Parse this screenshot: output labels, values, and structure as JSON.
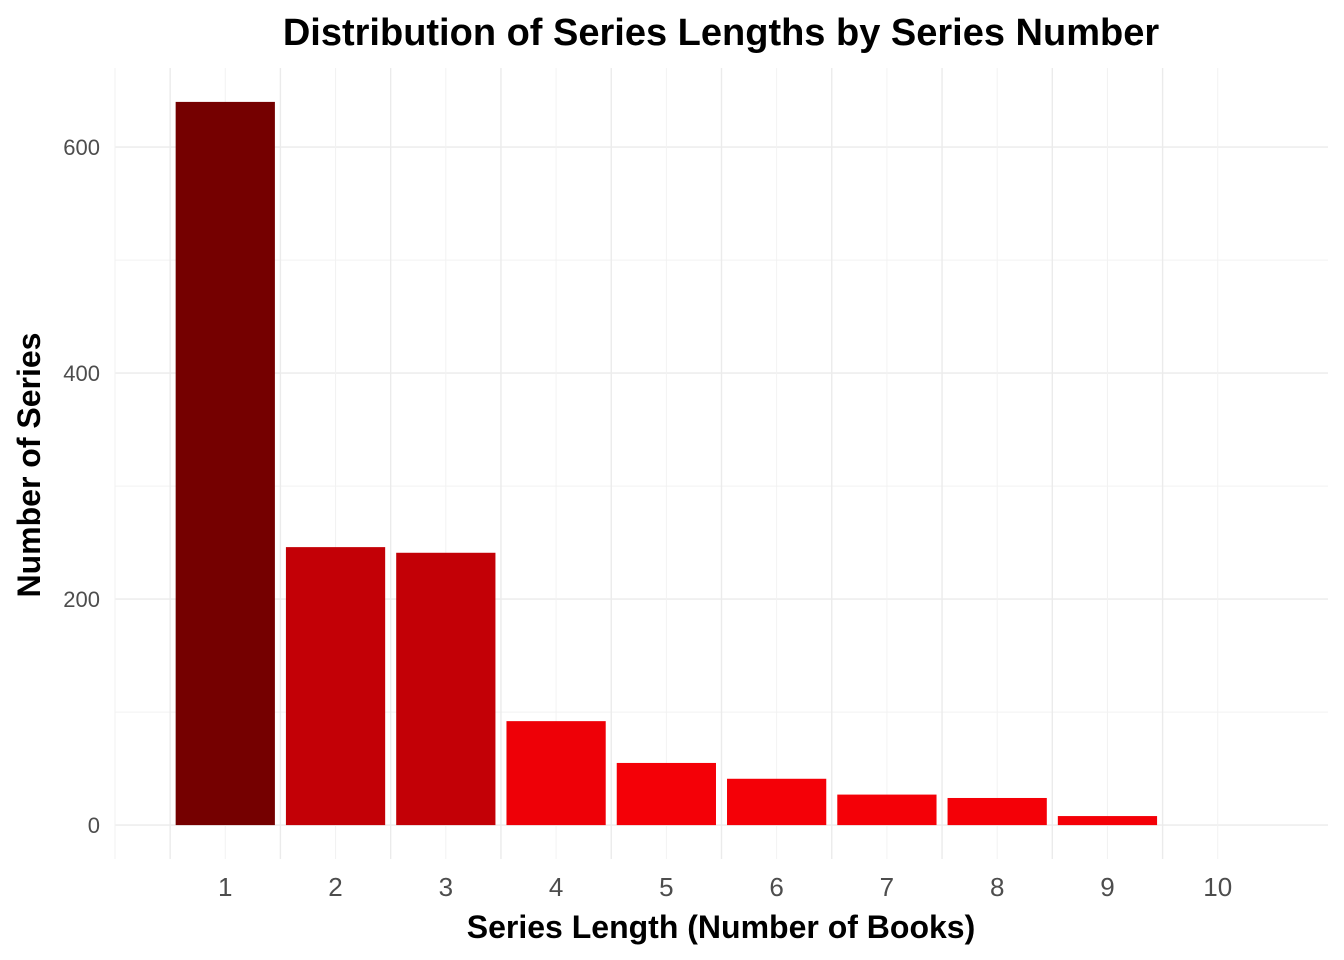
{
  "chart_data": {
    "type": "bar",
    "title": "Distribution of Series Lengths by Series Number",
    "xlabel": "Series Length (Number of Books)",
    "ylabel": "Number of Series",
    "categories": [
      "1",
      "2",
      "3",
      "4",
      "5",
      "6",
      "7",
      "8",
      "9",
      "10"
    ],
    "values": [
      640,
      246,
      241,
      92,
      55,
      41,
      27,
      24,
      8,
      null
    ],
    "colors": [
      "#750000",
      "#c30006",
      "#c30006",
      "#ee0007",
      "#f40007",
      "#f40007",
      "#f40007",
      "#f40007",
      "#f40007",
      null
    ],
    "y_ticks": [
      0,
      200,
      400,
      600
    ],
    "ylim": [
      -30,
      670
    ],
    "xlim": [
      -0.5,
      10.5
    ],
    "grid": true,
    "legend": "none"
  }
}
